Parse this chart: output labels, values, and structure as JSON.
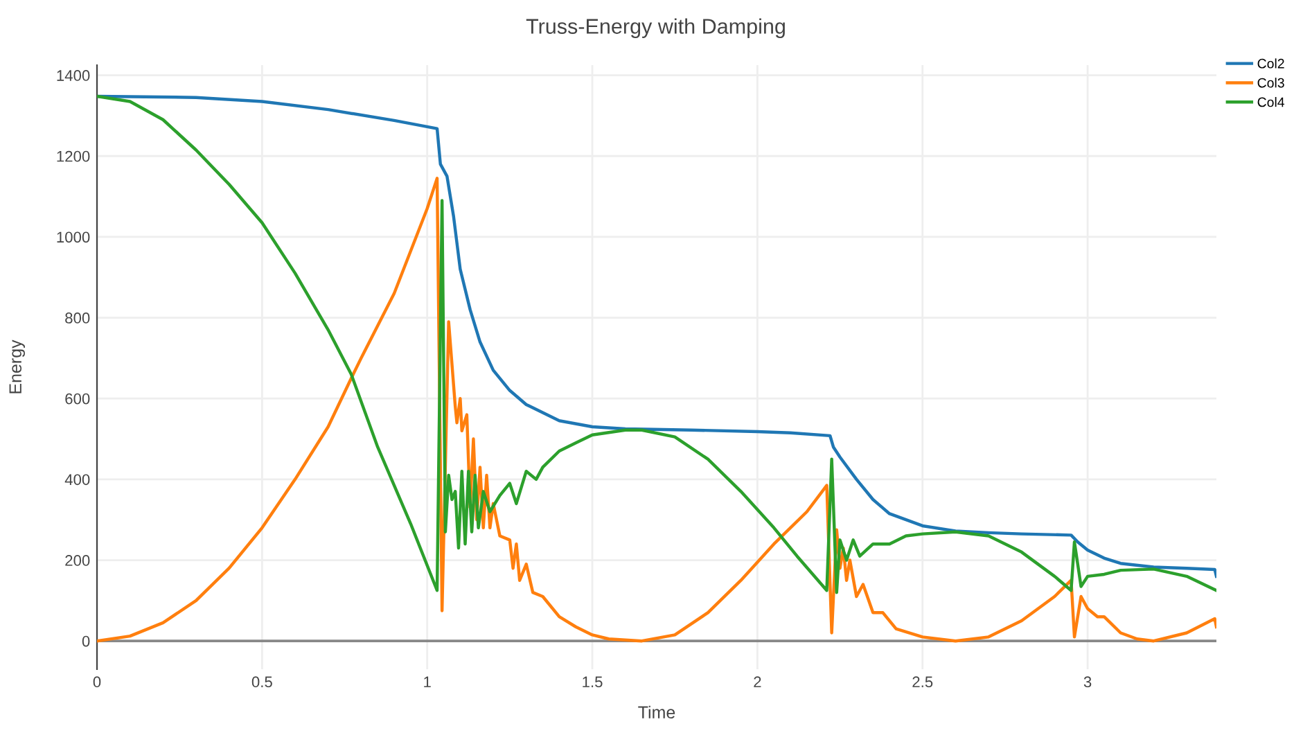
{
  "chart_data": {
    "type": "line",
    "title": "Truss-Energy with Damping",
    "xlabel": "Time",
    "ylabel": "Energy",
    "xlim": [
      0,
      3.39
    ],
    "ylim": [
      -70,
      1425
    ],
    "xticks": [
      0,
      0.5,
      1,
      1.5,
      2,
      2.5,
      3
    ],
    "yticks": [
      0,
      200,
      400,
      600,
      800,
      1000,
      1200,
      1400
    ],
    "grid": true,
    "legend": "top right",
    "marker": "none",
    "line_style": "solid",
    "series": [
      {
        "name": "Col2",
        "color": "#1f77b4",
        "x": [
          0,
          0.3,
          0.5,
          0.7,
          0.9,
          1.03,
          1.04,
          1.06,
          1.08,
          1.1,
          1.13,
          1.16,
          1.2,
          1.25,
          1.3,
          1.4,
          1.5,
          1.6,
          1.8,
          2.0,
          2.1,
          2.22,
          2.23,
          2.25,
          2.3,
          2.35,
          2.4,
          2.5,
          2.6,
          2.7,
          2.8,
          2.95,
          2.97,
          3.0,
          3.05,
          3.1,
          3.2,
          3.3,
          3.385,
          3.39
        ],
        "values": [
          1348,
          1345,
          1335,
          1315,
          1288,
          1268,
          1180,
          1150,
          1050,
          920,
          820,
          740,
          670,
          620,
          585,
          545,
          530,
          525,
          522,
          518,
          515,
          508,
          480,
          455,
          400,
          350,
          315,
          285,
          272,
          268,
          265,
          262,
          245,
          225,
          205,
          192,
          183,
          180,
          177,
          160
        ]
      },
      {
        "name": "Col3",
        "color": "#ff7f0e",
        "x": [
          0,
          0.1,
          0.2,
          0.3,
          0.4,
          0.5,
          0.6,
          0.7,
          0.77,
          0.8,
          0.9,
          1.0,
          1.03,
          1.045,
          1.065,
          1.085,
          1.09,
          1.1,
          1.105,
          1.12,
          1.13,
          1.14,
          1.15,
          1.16,
          1.17,
          1.18,
          1.19,
          1.2,
          1.22,
          1.25,
          1.26,
          1.27,
          1.28,
          1.3,
          1.32,
          1.35,
          1.4,
          1.45,
          1.5,
          1.55,
          1.65,
          1.75,
          1.85,
          1.95,
          2.05,
          2.15,
          2.21,
          2.225,
          2.24,
          2.25,
          2.26,
          2.27,
          2.28,
          2.3,
          2.32,
          2.35,
          2.38,
          2.42,
          2.5,
          2.6,
          2.7,
          2.8,
          2.9,
          2.95,
          2.96,
          2.98,
          3.0,
          3.03,
          3.05,
          3.1,
          3.15,
          3.2,
          3.3,
          3.385,
          3.39
        ],
        "values": [
          0,
          12,
          45,
          100,
          180,
          280,
          400,
          530,
          650,
          700,
          860,
          1070,
          1145,
          75,
          790,
          580,
          540,
          600,
          520,
          560,
          330,
          500,
          300,
          430,
          280,
          410,
          280,
          340,
          260,
          250,
          180,
          240,
          150,
          190,
          120,
          110,
          60,
          35,
          15,
          5,
          0,
          15,
          70,
          150,
          240,
          320,
          385,
          20,
          275,
          180,
          230,
          150,
          200,
          110,
          140,
          70,
          70,
          30,
          10,
          0,
          10,
          50,
          110,
          150,
          10,
          110,
          80,
          60,
          60,
          20,
          5,
          0,
          20,
          55,
          35
        ]
      },
      {
        "name": "Col4",
        "color": "#2ca02c",
        "x": [
          0,
          0.1,
          0.2,
          0.3,
          0.4,
          0.5,
          0.6,
          0.7,
          0.77,
          0.85,
          0.95,
          1.03,
          1.045,
          1.055,
          1.065,
          1.075,
          1.085,
          1.095,
          1.105,
          1.115,
          1.125,
          1.135,
          1.145,
          1.155,
          1.17,
          1.19,
          1.22,
          1.25,
          1.27,
          1.3,
          1.33,
          1.35,
          1.4,
          1.45,
          1.5,
          1.6,
          1.65,
          1.75,
          1.85,
          1.95,
          2.05,
          2.12,
          2.21,
          2.225,
          2.24,
          2.25,
          2.27,
          2.29,
          2.31,
          2.35,
          2.4,
          2.45,
          2.5,
          2.6,
          2.7,
          2.8,
          2.9,
          2.95,
          2.96,
          2.98,
          3.0,
          3.05,
          3.1,
          3.2,
          3.3,
          3.39
        ],
        "values": [
          1348,
          1335,
          1290,
          1215,
          1130,
          1035,
          910,
          770,
          660,
          480,
          290,
          125,
          1090,
          270,
          410,
          350,
          370,
          230,
          420,
          240,
          420,
          270,
          410,
          280,
          370,
          320,
          360,
          390,
          340,
          420,
          400,
          430,
          470,
          490,
          510,
          522,
          522,
          505,
          450,
          370,
          280,
          210,
          125,
          450,
          120,
          250,
          200,
          250,
          210,
          240,
          240,
          260,
          265,
          270,
          260,
          220,
          160,
          125,
          245,
          135,
          160,
          165,
          175,
          178,
          160,
          125
        ]
      }
    ]
  }
}
